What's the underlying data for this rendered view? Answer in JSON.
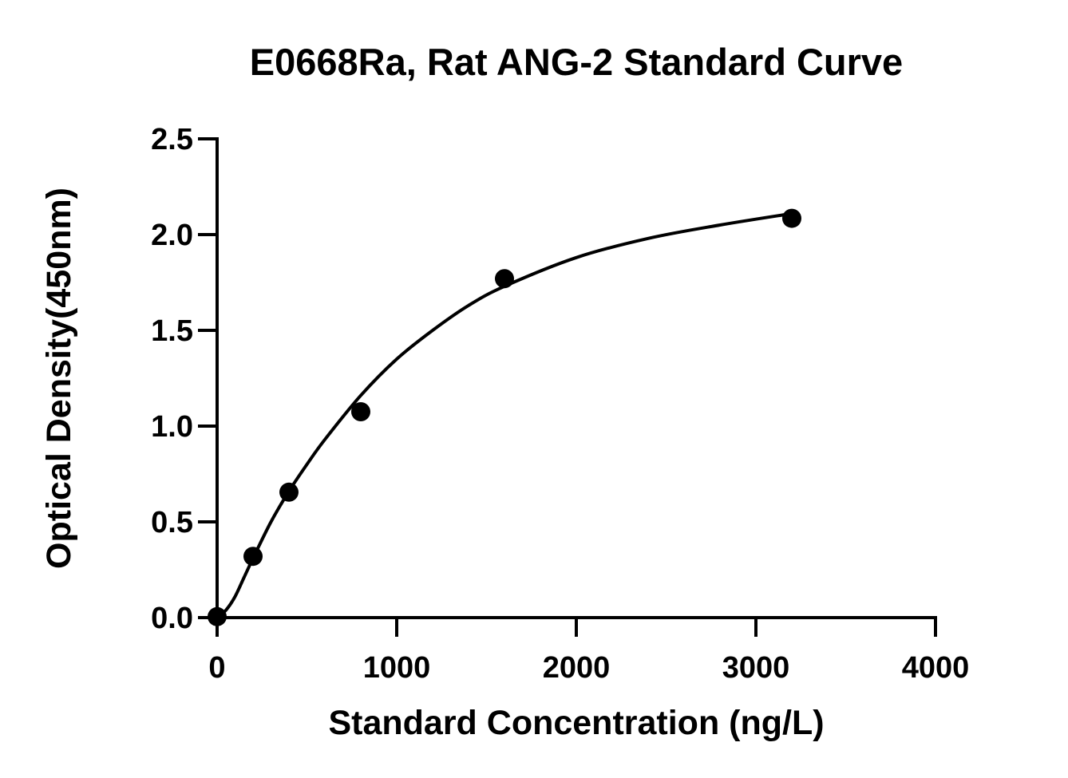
{
  "chart_data": {
    "type": "scatter",
    "title": "E0668Ra, Rat ANG-2 Standard Curve",
    "xlabel": "Standard Concentration (ng/L)",
    "ylabel": "Optical Density(450nm)",
    "xlim": [
      0,
      4000
    ],
    "ylim": [
      0,
      2.5
    ],
    "x_ticks": [
      0,
      1000,
      2000,
      3000,
      4000
    ],
    "x_tick_labels": [
      "0",
      "1000",
      "2000",
      "3000",
      "4000"
    ],
    "y_ticks": [
      0,
      0.5,
      1.0,
      1.5,
      2.0,
      2.5
    ],
    "y_tick_labels": [
      "0.0",
      "0.5",
      "1.0",
      "1.5",
      "2.0",
      "2.5"
    ],
    "grid": false,
    "series": [
      {
        "x": [
          0,
          200,
          400,
          800,
          1600,
          3200
        ],
        "y": [
          0.005,
          0.32,
          0.655,
          1.075,
          1.77,
          2.085
        ],
        "marker": "filled-circle",
        "color": "#000000"
      }
    ],
    "fit_curve": {
      "x": [
        0,
        50,
        100,
        150,
        200,
        300,
        400,
        500,
        600,
        800,
        1000,
        1200,
        1400,
        1600,
        2000,
        2400,
        2800,
        3200
      ],
      "y": [
        0.0,
        0.04,
        0.11,
        0.21,
        0.31,
        0.5,
        0.66,
        0.8,
        0.93,
        1.16,
        1.35,
        1.5,
        1.63,
        1.73,
        1.88,
        1.98,
        2.05,
        2.11
      ],
      "color": "#000000"
    }
  }
}
